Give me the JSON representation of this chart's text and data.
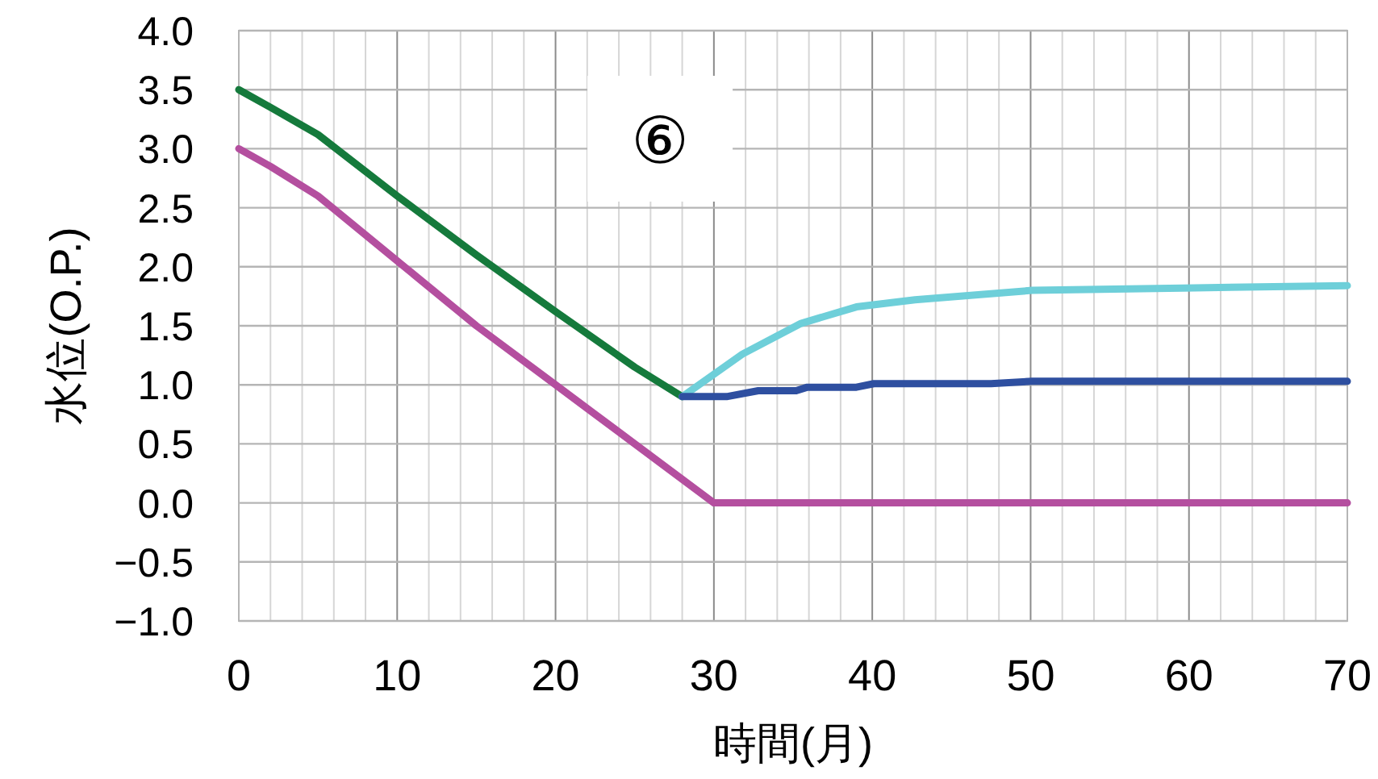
{
  "chart_data": {
    "type": "line",
    "ylabel": "水位(O.P.)",
    "xlabel": "時間(月)",
    "annotations": [
      "⑥"
    ],
    "xlim": [
      0,
      70
    ],
    "xticks": [
      0,
      10,
      20,
      30,
      40,
      50,
      60,
      70
    ],
    "ylim": [
      -1.0,
      4.0
    ],
    "yticks": [
      {
        "value": -1,
        "label": "−1.0"
      },
      {
        "value": -0.5,
        "label": "−0.5"
      },
      {
        "value": 0,
        "label": "0.0"
      },
      {
        "value": 0.5,
        "label": "0.5"
      },
      {
        "value": 1,
        "label": "1.0"
      },
      {
        "value": 1.5,
        "label": "1.5"
      },
      {
        "value": 2,
        "label": "2.0"
      },
      {
        "value": 2.5,
        "label": "2.5"
      },
      {
        "value": 3,
        "label": "3.0"
      },
      {
        "value": 3.5,
        "label": "3.5"
      },
      {
        "value": 4,
        "label": "4.0"
      }
    ],
    "grid": true,
    "marker": "none",
    "line_style": "solid",
    "series": [
      {
        "color": "#157a3c",
        "x": [
          0,
          2,
          5,
          10,
          15,
          20,
          25,
          28
        ],
        "values": [
          3.5,
          3.35,
          3.12,
          2.6,
          2.1,
          1.62,
          1.15,
          0.9
        ]
      },
      {
        "color": "#b44f9f",
        "x": [
          0,
          2,
          5,
          10,
          15,
          20,
          25,
          30,
          40,
          50,
          60,
          70
        ],
        "values": [
          3.0,
          2.85,
          2.6,
          2.05,
          1.5,
          1.0,
          0.5,
          0.0,
          0.0,
          0.0,
          0.0,
          0.0
        ]
      },
      {
        "color": "#6ecfd9",
        "x": [
          28,
          31.8,
          35.5,
          39,
          42.7,
          50.1,
          59.6,
          70
        ],
        "values": [
          0.9,
          1.26,
          1.52,
          1.66,
          1.72,
          1.8,
          1.82,
          1.84
        ]
      },
      {
        "color": "#2e4fa0",
        "x": [
          28,
          30.8,
          32.8,
          35.2,
          35.9,
          39,
          40.1,
          47.5,
          50.1,
          70
        ],
        "values": [
          0.9,
          0.9,
          0.95,
          0.95,
          0.98,
          0.98,
          1.01,
          1.01,
          1.03,
          1.03
        ]
      }
    ]
  }
}
